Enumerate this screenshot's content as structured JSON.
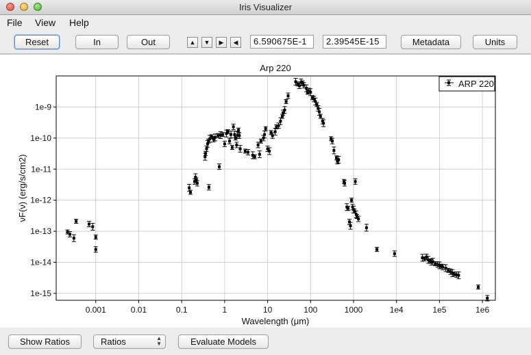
{
  "window": {
    "title": "Iris Visualizer"
  },
  "menu": {
    "items": [
      "File",
      "View",
      "Help"
    ]
  },
  "toolbar": {
    "reset_label": "Reset",
    "in_label": "In",
    "out_label": "Out",
    "arrow_up": "▲",
    "arrow_down": "▼",
    "arrow_right": "▶",
    "arrow_left": "◀",
    "x_coord": "6.590675E-1",
    "y_coord": "2.39545E-15",
    "metadata_label": "Metadata",
    "units_label": "Units"
  },
  "bottom": {
    "show_ratios_label": "Show Ratios",
    "ratios_select": "Ratios",
    "evaluate_label": "Evaluate Models"
  },
  "chart_data": {
    "type": "scatter",
    "title": "Arp 220",
    "xlabel": "Wavelength (μm)",
    "ylabel": "νF(ν) (erg/s/cm2)",
    "xscale": "log",
    "yscale": "log",
    "xlim": [
      0.00012,
      2000000.0
    ],
    "ylim": [
      6e-16,
      1e-08
    ],
    "x_ticks": [
      {
        "v": 0.001,
        "label": "0.001"
      },
      {
        "v": 0.01,
        "label": "0.01"
      },
      {
        "v": 0.1,
        "label": "0.1"
      },
      {
        "v": 1,
        "label": "1"
      },
      {
        "v": 10,
        "label": "10"
      },
      {
        "v": 100,
        "label": "100"
      },
      {
        "v": 1000,
        "label": "1000"
      },
      {
        "v": 10000,
        "label": "1e4"
      },
      {
        "v": 100000,
        "label": "1e5"
      },
      {
        "v": 1000000,
        "label": "1e6"
      }
    ],
    "y_ticks": [
      {
        "v": 1e-15,
        "label": "1e-15"
      },
      {
        "v": 1e-14,
        "label": "1e-14"
      },
      {
        "v": 1e-13,
        "label": "1e-13"
      },
      {
        "v": 1e-12,
        "label": "1e-12"
      },
      {
        "v": 1e-11,
        "label": "1e-11"
      },
      {
        "v": 1e-10,
        "label": "1e-10"
      },
      {
        "v": 1e-09,
        "label": "1e-9"
      }
    ],
    "grid": true,
    "legend": {
      "position": "top-right",
      "entries": [
        "ARP 220"
      ]
    },
    "series": [
      {
        "name": "ARP 220",
        "points": [
          [
            0.00022,
            9.5e-14
          ],
          [
            0.00025,
            8e-14
          ],
          [
            0.00031,
            6e-14
          ],
          [
            0.00035,
            2.1e-13
          ],
          [
            0.0007,
            1.7e-13
          ],
          [
            0.00085,
            1.4e-13
          ],
          [
            0.001,
            6.5e-14
          ],
          [
            0.001,
            2.6e-14
          ],
          [
            0.15,
            2.5e-12
          ],
          [
            0.16,
            1.8e-12
          ],
          [
            0.2,
            4e-12
          ],
          [
            0.21,
            5.5e-12
          ],
          [
            0.22,
            4.5e-12
          ],
          [
            0.23,
            3.5e-12
          ],
          [
            0.35,
            2.5e-11
          ],
          [
            0.36,
            3.2e-11
          ],
          [
            0.38,
            4.5e-11
          ],
          [
            0.4,
            6.5e-11
          ],
          [
            0.42,
            8e-11
          ],
          [
            0.43,
            2.6e-12
          ],
          [
            0.45,
            9.5e-11
          ],
          [
            0.5,
            1.1e-10
          ],
          [
            0.55,
            9.2e-11
          ],
          [
            0.6,
            1.05e-10
          ],
          [
            0.7,
            1.2e-10
          ],
          [
            0.75,
            1.2e-11
          ],
          [
            0.8,
            1.25e-10
          ],
          [
            0.9,
            1.3e-10
          ],
          [
            1.0,
            6.5e-11
          ],
          [
            1.1,
            1.4e-10
          ],
          [
            1.2,
            1.6e-10
          ],
          [
            1.3,
            8e-11
          ],
          [
            1.4,
            1.3e-10
          ],
          [
            1.5,
            5e-11
          ],
          [
            1.6,
            2.3e-10
          ],
          [
            1.7,
            1.3e-10
          ],
          [
            1.8,
            1e-10
          ],
          [
            1.9,
            6e-11
          ],
          [
            2.0,
            1.25e-10
          ],
          [
            2.1,
            1.8e-10
          ],
          [
            2.2,
            1.2e-10
          ],
          [
            2.3,
            4.5e-11
          ],
          [
            3.0,
            3.8e-11
          ],
          [
            3.5,
            3.5e-11
          ],
          [
            4.5,
            2.8e-11
          ],
          [
            5.0,
            2.5e-11
          ],
          [
            6.0,
            6e-11
          ],
          [
            6.5,
            3e-11
          ],
          [
            7.0,
            8e-11
          ],
          [
            8.0,
            1e-10
          ],
          [
            8.5,
            1.3e-10
          ],
          [
            9.0,
            2e-10
          ],
          [
            10,
            4.5e-11
          ],
          [
            11,
            3.8e-11
          ],
          [
            12,
            1.5e-10
          ],
          [
            13,
            1.2e-10
          ],
          [
            15,
            1.6e-10
          ],
          [
            16,
            2.3e-10
          ],
          [
            18,
            2.5e-10
          ],
          [
            20,
            3.5e-10
          ],
          [
            22,
            5e-10
          ],
          [
            23,
            6.5e-10
          ],
          [
            25,
            8e-10
          ],
          [
            27,
            1.5e-09
          ],
          [
            30,
            2.3e-09
          ],
          [
            45,
            6.5e-09
          ],
          [
            50,
            5.5e-09
          ],
          [
            55,
            4.8e-09
          ],
          [
            60,
            6.2e-09
          ],
          [
            65,
            6e-09
          ],
          [
            70,
            5e-09
          ],
          [
            80,
            4e-09
          ],
          [
            85,
            3e-09
          ],
          [
            90,
            3.3e-09
          ],
          [
            100,
            3e-09
          ],
          [
            110,
            2e-09
          ],
          [
            120,
            1.8e-09
          ],
          [
            130,
            1.5e-09
          ],
          [
            140,
            1.2e-09
          ],
          [
            150,
            9e-10
          ],
          [
            160,
            7e-10
          ],
          [
            170,
            5e-10
          ],
          [
            190,
            3.5e-10
          ],
          [
            200,
            3e-10
          ],
          [
            300,
            9.5e-11
          ],
          [
            320,
            8e-11
          ],
          [
            350,
            4e-11
          ],
          [
            400,
            2.3e-11
          ],
          [
            420,
            1.8e-11
          ],
          [
            450,
            2e-11
          ],
          [
            600,
            4e-12
          ],
          [
            620,
            3.5e-12
          ],
          [
            700,
            6e-13
          ],
          [
            750,
            5.5e-13
          ],
          [
            800,
            2e-13
          ],
          [
            850,
            1.5e-13
          ],
          [
            900,
            1e-12
          ],
          [
            950,
            6e-13
          ],
          [
            1000,
            5e-13
          ],
          [
            1050,
            4.5e-13
          ],
          [
            1100,
            4e-12
          ],
          [
            1150,
            3.5e-13
          ],
          [
            1200,
            3e-13
          ],
          [
            1300,
            2.5e-13
          ],
          [
            2000,
            1.3e-13
          ],
          [
            3500,
            2.6e-14
          ],
          [
            9000,
            1.9e-14
          ],
          [
            40000,
            1.4e-14
          ],
          [
            45000,
            1.3e-14
          ],
          [
            50000,
            1.5e-14
          ],
          [
            55000,
            1.2e-14
          ],
          [
            60000,
            1.1e-14
          ],
          [
            65000,
            1e-14
          ],
          [
            70000,
            1.05e-14
          ],
          [
            80000,
            9e-15
          ],
          [
            90000,
            8.5e-15
          ],
          [
            100000,
            8e-15
          ],
          [
            110000,
            7.5e-15
          ],
          [
            120000,
            7e-15
          ],
          [
            140000,
            6.5e-15
          ],
          [
            160000,
            5.5e-15
          ],
          [
            180000,
            5e-15
          ],
          [
            200000,
            4.5e-15
          ],
          [
            220000,
            4.2e-15
          ],
          [
            250000,
            4e-15
          ],
          [
            280000,
            3.8e-15
          ],
          [
            800000,
            1.6e-15
          ],
          [
            1300000,
            7e-16
          ]
        ]
      }
    ]
  }
}
